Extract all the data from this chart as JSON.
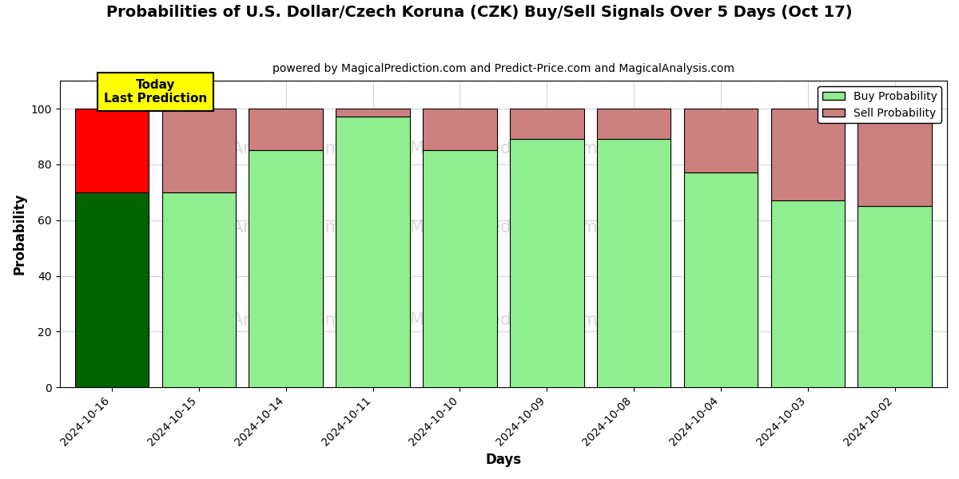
{
  "title": "Probabilities of U.S. Dollar/Czech Koruna (CZK) Buy/Sell Signals Over 5 Days (Oct 17)",
  "subtitle": "powered by MagicalPrediction.com and Predict-Price.com and MagicalAnalysis.com",
  "xlabel": "Days",
  "ylabel": "Probability",
  "dates": [
    "2024-10-16",
    "2024-10-15",
    "2024-10-14",
    "2024-10-11",
    "2024-10-10",
    "2024-10-09",
    "2024-10-08",
    "2024-10-04",
    "2024-10-03",
    "2024-10-02"
  ],
  "buy_values": [
    70,
    70,
    85,
    97,
    85,
    89,
    89,
    77,
    67,
    65
  ],
  "sell_values": [
    30,
    30,
    15,
    3,
    15,
    11,
    11,
    23,
    33,
    35
  ],
  "today_index": 0,
  "today_buy_color": "#006400",
  "today_sell_color": "#ff0000",
  "other_buy_color": "#90EE90",
  "other_sell_color": "#cd8080",
  "ylim": [
    0,
    110
  ],
  "yticks": [
    0,
    20,
    40,
    60,
    80,
    100
  ],
  "dashed_line_y": 110,
  "today_label_text": "Today\nLast Prediction",
  "today_label_bg": "#ffff00",
  "legend_buy_color": "#90EE90",
  "legend_sell_color": "#cd8080",
  "watermark_color": "#c8c8c8",
  "bar_width": 0.85,
  "fig_width": 12.0,
  "fig_height": 6.0,
  "fig_dpi": 100
}
